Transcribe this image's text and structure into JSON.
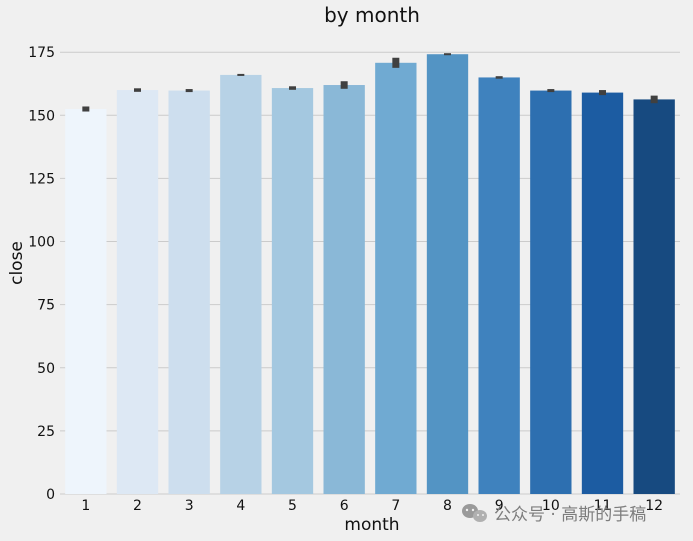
{
  "chart_data": {
    "type": "bar",
    "title": "by month",
    "xlabel": "month",
    "ylabel": "close",
    "categories": [
      "1",
      "2",
      "3",
      "4",
      "5",
      "6",
      "7",
      "8",
      "9",
      "10",
      "11",
      "12"
    ],
    "values": [
      152.5,
      160.0,
      159.8,
      166.0,
      160.8,
      162.0,
      170.8,
      174.2,
      165.0,
      159.8,
      159.0,
      156.3
    ],
    "error_low": [
      151.5,
      159.3,
      159.2,
      165.6,
      160.1,
      160.5,
      168.8,
      173.8,
      164.5,
      159.2,
      158.0,
      154.8
    ],
    "error_high": [
      153.5,
      160.7,
      160.4,
      166.4,
      161.5,
      163.5,
      172.8,
      174.6,
      165.5,
      160.4,
      160.0,
      157.8
    ],
    "yticks": [
      0,
      25,
      50,
      75,
      100,
      125,
      150,
      175
    ],
    "ylim": [
      0,
      183
    ],
    "grid": true,
    "palette": [
      "#eef5fc",
      "#dde8f4",
      "#cddeee",
      "#b7d2e6",
      "#a4c8e0",
      "#8ab8d7",
      "#70aad2",
      "#5394c4",
      "#3f82be",
      "#2d6fb0",
      "#1c5ca2",
      "#174a80"
    ],
    "errorbar_color": "#404040"
  },
  "watermark": {
    "text": "公众号 · 高斯的手稿",
    "icon": "wechat-icon"
  }
}
